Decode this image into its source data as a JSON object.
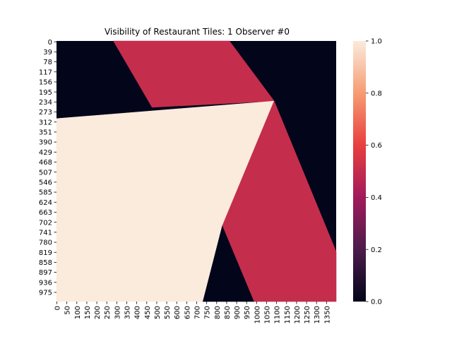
{
  "chart_data": {
    "type": "heatmap",
    "title": "Visibility of Restaurant Tiles: 1 Observer #0",
    "xlabel": "",
    "ylabel": "",
    "x_extent": [
      0,
      1375
    ],
    "y_extent": [
      0,
      1014
    ],
    "x_tick_labels": [
      "0",
      "50",
      "100",
      "150",
      "200",
      "250",
      "300",
      "350",
      "400",
      "450",
      "500",
      "550",
      "600",
      "650",
      "700",
      "750",
      "800",
      "850",
      "900",
      "950",
      "1000",
      "1050",
      "1100",
      "1150",
      "1200",
      "1250",
      "1300",
      "1350"
    ],
    "y_tick_labels": [
      "0",
      "39",
      "78",
      "117",
      "156",
      "195",
      "234",
      "273",
      "312",
      "351",
      "390",
      "429",
      "468",
      "507",
      "546",
      "585",
      "624",
      "663",
      "702",
      "741",
      "780",
      "819",
      "858",
      "897",
      "936",
      "975"
    ],
    "colorbar": {
      "min": 0.0,
      "max": 1.0,
      "tick_labels": [
        "0.0",
        "0.2",
        "0.4",
        "0.6",
        "0.8",
        "1.0"
      ],
      "colors": [
        "#03051a",
        "#4c1d4b",
        "#a11a5b",
        "#e83f3f",
        "#f69c73",
        "#faebdd"
      ]
    },
    "regions": [
      {
        "value": 0.5,
        "polygon": [
          [
            280,
            0
          ],
          [
            850,
            0
          ],
          [
            1070,
            234
          ],
          [
            470,
            258
          ]
        ]
      },
      {
        "value": 1.0,
        "polygon": [
          [
            0,
            302
          ],
          [
            1070,
            234
          ],
          [
            720,
            1014
          ],
          [
            0,
            1014
          ]
        ]
      },
      {
        "value": 0.5,
        "polygon": [
          [
            1070,
            234
          ],
          [
            1375,
            820
          ],
          [
            1375,
            1014
          ],
          [
            970,
            1014
          ],
          [
            815,
            720
          ]
        ]
      },
      {
        "value": 0.0,
        "polygon": [
          [
            815,
            720
          ],
          [
            970,
            1014
          ],
          [
            720,
            1014
          ]
        ]
      }
    ],
    "background_value": 0.0,
    "grid": false,
    "legend": "colorbar-right"
  }
}
